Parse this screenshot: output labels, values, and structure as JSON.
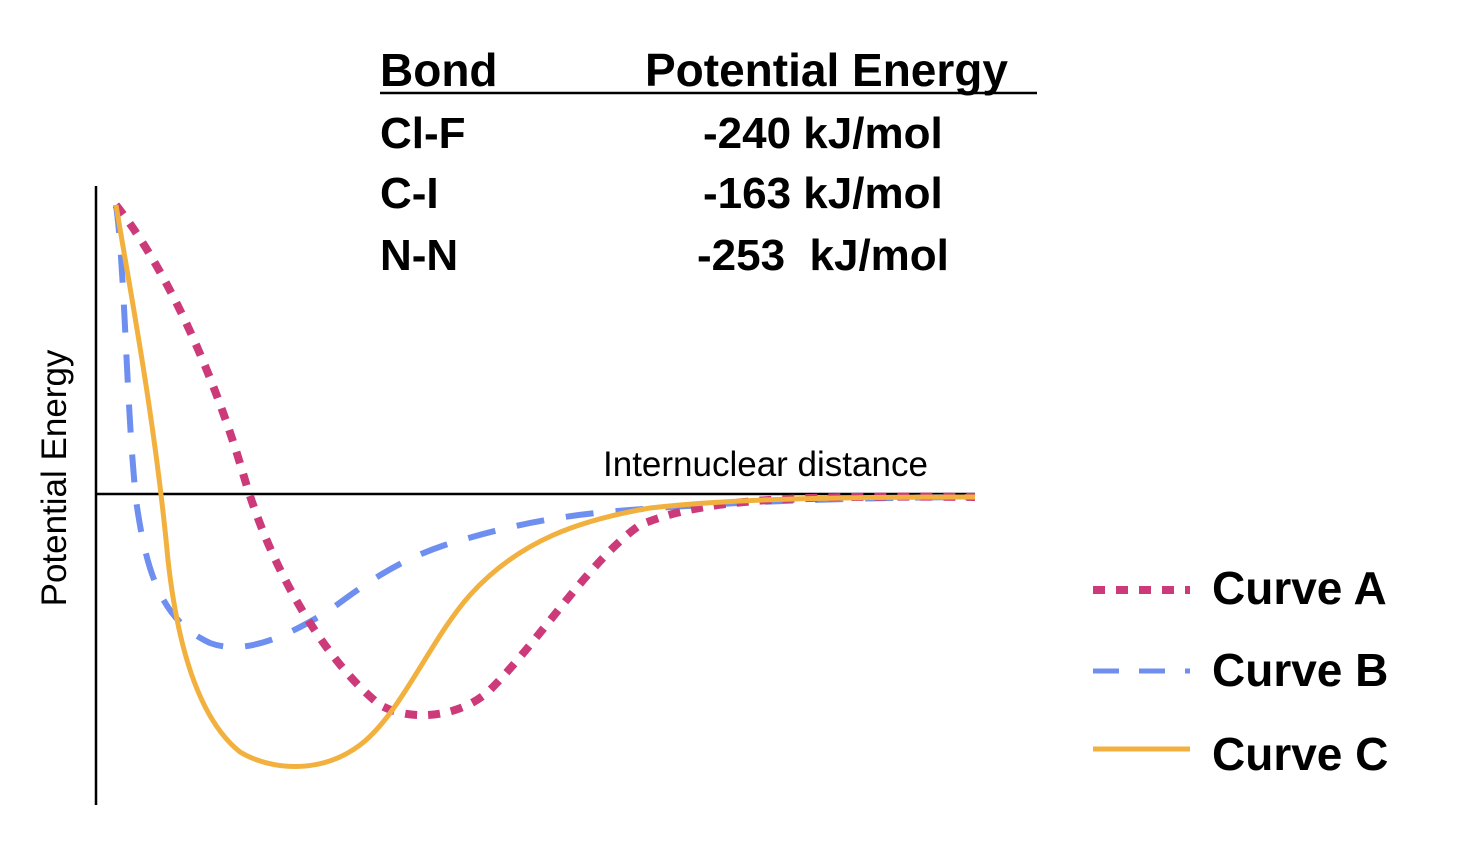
{
  "table": {
    "headers": [
      "Bond",
      "Potential Energy"
    ],
    "rows": [
      {
        "bond": "Cl-F",
        "energy": "-240 kJ/mol"
      },
      {
        "bond": "C-I",
        "energy": "-163 kJ/mol"
      },
      {
        "bond": "N-N",
        "energy": "-253  kJ/mol"
      }
    ]
  },
  "chart_data": {
    "type": "line",
    "title": "",
    "xlabel": "Internuclear distance",
    "ylabel": "Potential Energy",
    "grid": false,
    "axis_ticks": false,
    "legend_position": "right",
    "series": [
      {
        "name": "Curve A",
        "color": "#cc3a7a",
        "style": "dotted",
        "well_depth": 1.0,
        "equilibrium_distance": "large",
        "rank_order_x": 3
      },
      {
        "name": "Curve B",
        "color": "#6e8ff0",
        "style": "dashed",
        "well_depth": 0.55,
        "equilibrium_distance": "small",
        "rank_order_x": 1
      },
      {
        "name": "Curve C",
        "color": "#f2b13e",
        "style": "solid",
        "well_depth": 1.13,
        "equilibrium_distance": "medium",
        "rank_order_x": 2
      }
    ]
  }
}
